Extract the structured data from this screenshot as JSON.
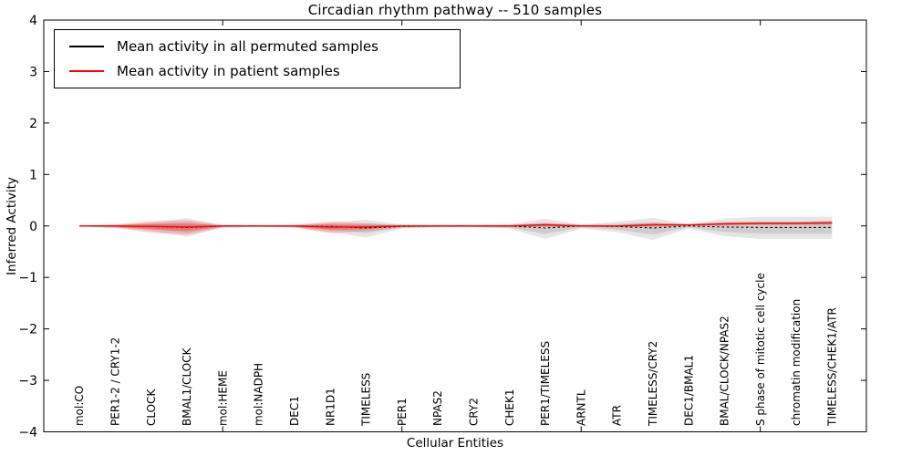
{
  "chart_data": {
    "type": "line",
    "title": "Circadian rhythm pathway -- 510 samples",
    "xlabel": "Cellular Entities",
    "ylabel": "Inferred Activity",
    "ylim": [
      -4,
      4
    ],
    "yticks": [
      -4,
      -3,
      -2,
      -1,
      0,
      1,
      2,
      3,
      4
    ],
    "xtick_marks_at_category_index": [
      4,
      9,
      14,
      19
    ],
    "grid": false,
    "legend_position": "upper left",
    "legend": [
      {
        "label": "Mean activity in all permuted samples",
        "color": "#000000"
      },
      {
        "label": "Mean activity in patient samples",
        "color": "#ff0000"
      }
    ],
    "band_colors": {
      "permuted_band": "#000000",
      "patient_band": "#ff0000"
    },
    "categories": [
      "mol:CO",
      "PER1-2 / CRY1-2",
      "CLOCK",
      "BMAL1/CLOCK",
      "mol:HEME",
      "mol:NADPH",
      "DEC1",
      "NR1D1",
      "TIMELESS",
      "PER1",
      "NPAS2",
      "CRY2",
      "CHEK1",
      "PER1/TIMELESS",
      "ARNTL",
      "ATR",
      "TIMELESS/CRY2",
      "DEC1/BMAL1",
      "BMAL/CLOCK/NPAS2",
      "S phase of mitotic cell cycle",
      "chromatin modification",
      "TIMELESS/CHEK1/ATR"
    ],
    "series": [
      {
        "name": "permuted_mean",
        "values": [
          0,
          0,
          -0.01,
          -0.03,
          0,
          0,
          0,
          -0.01,
          -0.04,
          -0.01,
          0,
          0,
          0,
          -0.04,
          0,
          -0.01,
          -0.04,
          0,
          -0.02,
          -0.03,
          -0.03,
          -0.03
        ]
      },
      {
        "name": "permuted_band_hi",
        "values": [
          0.01,
          0.02,
          0.07,
          0.15,
          0.02,
          0.02,
          0.02,
          0.07,
          0.12,
          0.03,
          0.02,
          0.02,
          0.03,
          0.14,
          0.03,
          0.08,
          0.16,
          0.03,
          0.14,
          0.18,
          0.18,
          0.18
        ]
      },
      {
        "name": "permuted_band_lo",
        "values": [
          -0.01,
          -0.03,
          -0.1,
          -0.21,
          -0.03,
          -0.02,
          -0.03,
          -0.12,
          -0.22,
          -0.05,
          -0.03,
          -0.03,
          -0.05,
          -0.25,
          -0.05,
          -0.12,
          -0.27,
          -0.05,
          -0.2,
          -0.25,
          -0.25,
          -0.25
        ]
      },
      {
        "name": "patient_mean",
        "values": [
          0,
          0,
          -0.01,
          -0.02,
          0,
          0,
          0,
          -0.02,
          -0.02,
          0,
          0,
          0,
          0,
          0.02,
          0,
          0,
          0.02,
          0.02,
          0.04,
          0.05,
          0.05,
          0.06
        ]
      },
      {
        "name": "patient_band_hi",
        "values": [
          0.01,
          0.03,
          0.09,
          0.11,
          0.02,
          0.01,
          0.02,
          0.08,
          0.05,
          0.02,
          0.02,
          0.02,
          0.02,
          0.06,
          0.02,
          0.02,
          0.06,
          0.04,
          0.07,
          0.08,
          0.08,
          0.1
        ]
      },
      {
        "name": "patient_band_lo",
        "values": [
          -0.01,
          -0.04,
          -0.13,
          -0.17,
          -0.03,
          -0.02,
          -0.03,
          -0.14,
          -0.1,
          -0.03,
          -0.02,
          -0.02,
          -0.03,
          -0.02,
          -0.02,
          -0.03,
          -0.02,
          0,
          0.01,
          0.02,
          0.02,
          0.02
        ]
      }
    ]
  }
}
